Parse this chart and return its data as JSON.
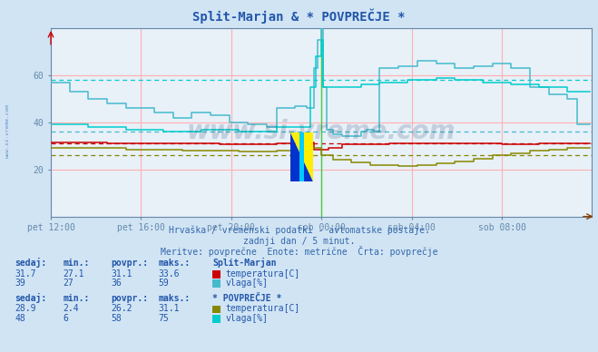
{
  "title": "Split-Marjan & * POVPREČJE *",
  "background_color": "#d0e4f4",
  "plot_bg_color": "#e8f0f8",
  "subtitle_line1": "Hrvaška / vremenski podatki - avtomatske postaje.",
  "subtitle_line2": "zadnji dan / 5 minut.",
  "subtitle_line3": "Meritve: povprečne  Enote: metrične  Črta: povprečje",
  "xlabel_ticks": [
    "pet 12:00",
    "pet 16:00",
    "pet 20:00",
    "sob 00:00",
    "sob 04:00",
    "sob 08:00"
  ],
  "tick_positions": [
    0,
    48,
    96,
    144,
    192,
    240
  ],
  "colors": {
    "sm_temp": "#cc0000",
    "sm_vlaga": "#44bbcc",
    "avg_temp": "#888800",
    "avg_vlaga": "#00cccc",
    "grid_major": "#ffb0b0",
    "grid_minor": "#ffdddd",
    "axis_color": "#6688aa",
    "text_color": "#2255aa",
    "subtitle_color": "#3366aa"
  },
  "sm_temp_avg": 31.1,
  "sm_temp_min": 27.1,
  "sm_temp_max": 33.6,
  "sm_temp_now": 31.7,
  "sm_vlaga_avg": 36,
  "sm_vlaga_min": 27,
  "sm_vlaga_max": 59,
  "sm_vlaga_now": 39,
  "avg_temp_avg": 26.2,
  "avg_temp_min": 2.4,
  "avg_temp_max": 31.1,
  "avg_temp_now": 28.9,
  "avg_vlaga_avg": 58,
  "avg_vlaga_min": 6,
  "avg_vlaga_max": 75,
  "avg_vlaga_now": 48,
  "watermark": "www.si-vreme.com",
  "side_text": "www.si-vreme.com",
  "legend1_title": "Split-Marjan",
  "legend2_title": "* POVPREČJE *",
  "col_sedaj": "sedaj:",
  "col_min": "min.:",
  "col_povpr": "povpr.:",
  "col_maks": "maks.:",
  "label_temp": "temperatura[C]",
  "label_vlaga": "vlaga[%]"
}
